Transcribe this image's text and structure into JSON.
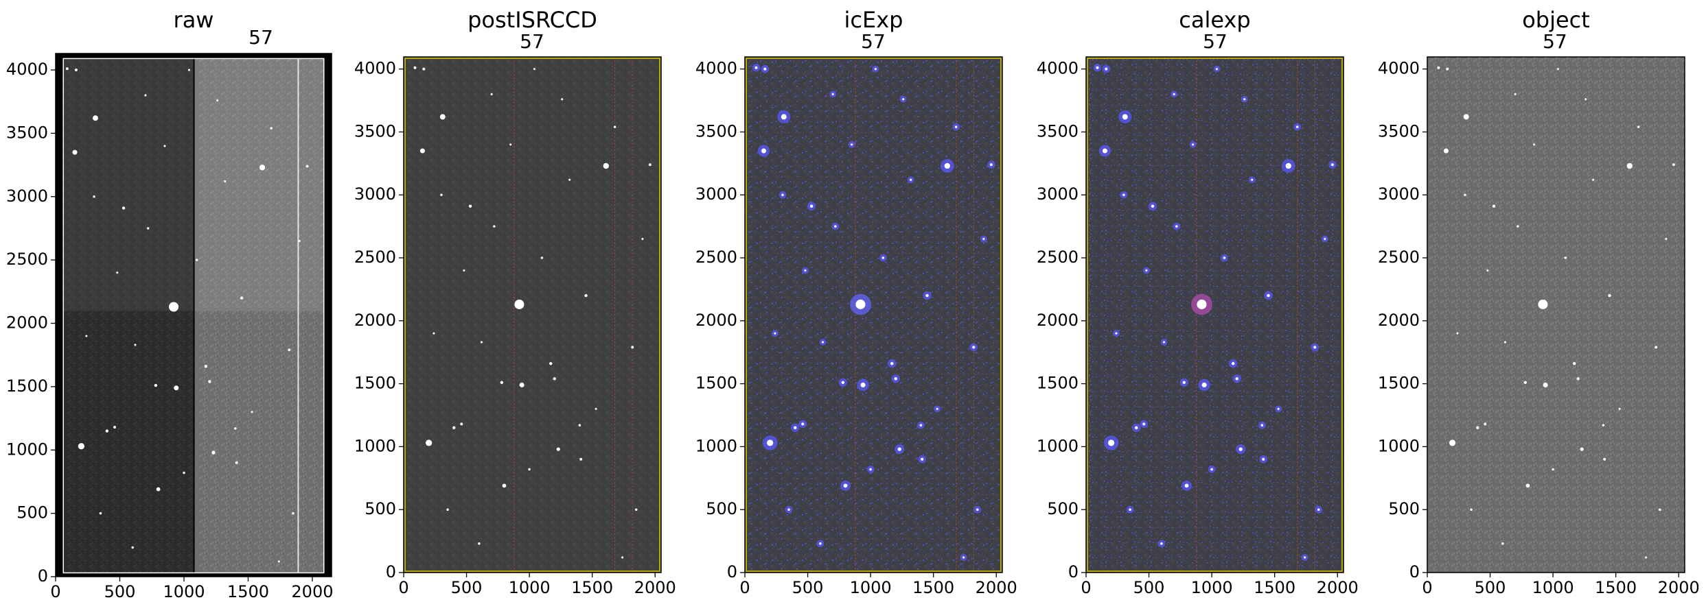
{
  "figure": {
    "background": "#ffffff"
  },
  "chart_data": [
    {
      "type": "image",
      "title": "raw",
      "image_label": "57",
      "xlim": [
        0,
        2150
      ],
      "ylim": [
        0,
        4130
      ],
      "xticks": [
        0,
        500,
        1000,
        1500,
        2000
      ],
      "yticks": [
        0,
        500,
        1000,
        1500,
        2000,
        2500,
        3000,
        3500,
        4000
      ],
      "style": "raw",
      "amp_split_x": 1078,
      "amp_split_y": 2095,
      "quadrant_levels": [
        "#3a3a3a",
        "#2b2b2b",
        "#7d7d7d",
        "#6e6e6e"
      ],
      "frame_color": "#000000",
      "outline_color": "#ffffff"
    },
    {
      "type": "image",
      "title": "postISRCCD",
      "image_label": "57",
      "xlim": [
        0,
        2048
      ],
      "ylim": [
        0,
        4096
      ],
      "xticks": [
        0,
        500,
        1000,
        1500,
        2000
      ],
      "yticks": [
        0,
        500,
        1000,
        1500,
        2000,
        2500,
        3000,
        3500,
        4000
      ],
      "style": "processed",
      "background_level": "#3f3f3f",
      "border_color": "#c8b400",
      "column_line_color": "#b05030",
      "column_lines_x": [
        880,
        1680,
        1820
      ]
    },
    {
      "type": "image",
      "title": "icExp",
      "image_label": "57",
      "xlim": [
        0,
        2048
      ],
      "ylim": [
        0,
        4096
      ],
      "xticks": [
        0,
        500,
        1000,
        1500,
        2000
      ],
      "yticks": [
        0,
        500,
        1000,
        1500,
        2000,
        2500,
        3000,
        3500,
        4000
      ],
      "style": "masked",
      "background_level": "#3f3f4a",
      "border_color": "#c8b400",
      "column_line_color": "#b05030",
      "column_lines_x": [
        880,
        1680,
        1820
      ],
      "mask_color": "#5a5aff",
      "bright_star_mask_color": "#6464ff"
    },
    {
      "type": "image",
      "title": "calexp",
      "image_label": "57",
      "xlim": [
        0,
        2048
      ],
      "ylim": [
        0,
        4096
      ],
      "xticks": [
        0,
        500,
        1000,
        1500,
        2000
      ],
      "yticks": [
        0,
        500,
        1000,
        1500,
        2000,
        2500,
        3000,
        3500,
        4000
      ],
      "style": "masked",
      "background_level": "#3f3f4a",
      "border_color": "#c8b400",
      "column_line_color": "#b05030",
      "column_lines_x": [
        880,
        1680,
        1820
      ],
      "mask_color": "#5a5aff",
      "bright_star_mask_color": "#b04cb0"
    },
    {
      "type": "image",
      "title": "object",
      "image_label": "57",
      "xlim": [
        0,
        2048
      ],
      "ylim": [
        0,
        4096
      ],
      "xticks": [
        0,
        500,
        1000,
        1500,
        2000
      ],
      "yticks": [
        0,
        500,
        1000,
        1500,
        2000,
        2500,
        3000,
        3500,
        4000
      ],
      "style": "plain",
      "background_level": "#6b6b6b"
    }
  ],
  "stars": [
    {
      "x": 920,
      "y": 2130,
      "r": 3.2
    },
    {
      "x": 310,
      "y": 3620,
      "r": 1.8
    },
    {
      "x": 150,
      "y": 3350,
      "r": 1.6
    },
    {
      "x": 1610,
      "y": 3230,
      "r": 1.9
    },
    {
      "x": 200,
      "y": 1030,
      "r": 2.1
    },
    {
      "x": 940,
      "y": 1490,
      "r": 1.6
    },
    {
      "x": 800,
      "y": 690,
      "r": 1.3
    },
    {
      "x": 1230,
      "y": 980,
      "r": 1.2
    },
    {
      "x": 530,
      "y": 2910,
      "r": 1.0
    },
    {
      "x": 1450,
      "y": 2200,
      "r": 1.0
    },
    {
      "x": 1170,
      "y": 1660,
      "r": 1.0
    },
    {
      "x": 1200,
      "y": 1540,
      "r": 1.0
    },
    {
      "x": 400,
      "y": 1150,
      "r": 1.0
    },
    {
      "x": 460,
      "y": 1180,
      "r": 0.9
    },
    {
      "x": 780,
      "y": 1510,
      "r": 1.0
    },
    {
      "x": 1820,
      "y": 1790,
      "r": 0.9
    },
    {
      "x": 1960,
      "y": 3240,
      "r": 0.9
    },
    {
      "x": 300,
      "y": 3000,
      "r": 0.8
    },
    {
      "x": 720,
      "y": 2750,
      "r": 0.8
    },
    {
      "x": 1680,
      "y": 3540,
      "r": 0.8
    },
    {
      "x": 90,
      "y": 4010,
      "r": 0.9
    },
    {
      "x": 160,
      "y": 4000,
      "r": 0.9
    },
    {
      "x": 1410,
      "y": 900,
      "r": 0.9
    },
    {
      "x": 1000,
      "y": 820,
      "r": 0.8
    },
    {
      "x": 1850,
      "y": 500,
      "r": 0.8
    },
    {
      "x": 350,
      "y": 500,
      "r": 0.8
    },
    {
      "x": 600,
      "y": 230,
      "r": 0.8
    },
    {
      "x": 1400,
      "y": 1170,
      "r": 0.8
    },
    {
      "x": 1100,
      "y": 2500,
      "r": 0.8
    },
    {
      "x": 1320,
      "y": 3120,
      "r": 0.7
    },
    {
      "x": 850,
      "y": 3400,
      "r": 0.7
    },
    {
      "x": 1900,
      "y": 2650,
      "r": 0.7
    },
    {
      "x": 620,
      "y": 1830,
      "r": 0.7
    },
    {
      "x": 1530,
      "y": 1300,
      "r": 0.7
    },
    {
      "x": 240,
      "y": 1900,
      "r": 0.7
    },
    {
      "x": 1740,
      "y": 120,
      "r": 0.7
    },
    {
      "x": 1040,
      "y": 4000,
      "r": 0.7
    },
    {
      "x": 700,
      "y": 3800,
      "r": 0.7
    },
    {
      "x": 1260,
      "y": 3760,
      "r": 0.7
    },
    {
      "x": 480,
      "y": 2400,
      "r": 0.7
    }
  ]
}
